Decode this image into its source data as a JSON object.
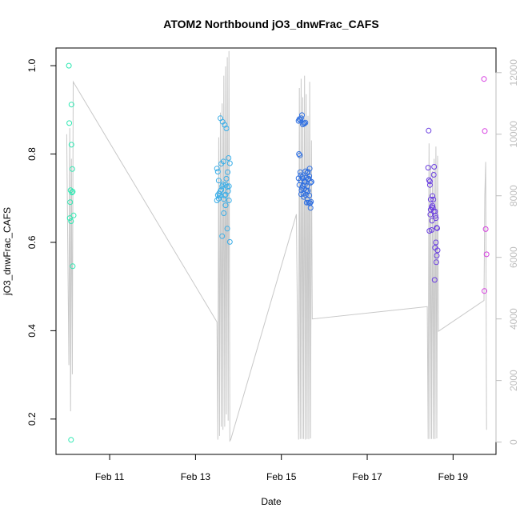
{
  "chart_data": {
    "type": "scatter",
    "title": "ATOM2 Northbound jO3_dnwFrac_CAFS",
    "xlabel": "Date",
    "ylabel": "jO3_dnwFrac_CAFS",
    "x_ticks": [
      "Feb 11",
      "Feb 13",
      "Feb 15",
      "Feb 17",
      "Feb 19"
    ],
    "x_tick_days": [
      11,
      13,
      15,
      17,
      19
    ],
    "xlim_days": [
      9.75,
      20.0
    ],
    "ylim": [
      0.12,
      1.04
    ],
    "y_ticks": [
      0.2,
      0.4,
      0.6,
      0.8,
      1.0
    ],
    "y_tick_labels": [
      "0.2",
      "0.4",
      "0.6",
      "0.8",
      "1.0"
    ],
    "y2lim": [
      -400,
      12800
    ],
    "y2_ticks": [
      0,
      2000,
      4000,
      6000,
      8000,
      10000,
      12000
    ],
    "y2_tick_labels": [
      "0",
      "2000",
      "4000",
      "6000",
      "8000",
      "10000",
      "12000"
    ],
    "colors": {
      "axis": "#000000",
      "secondary_axis": "#bdbdbd",
      "altitude_line": "#c8c8c8"
    },
    "series": [
      {
        "color": "#2ee8b2",
        "x_days": [
          10.05,
          10.06,
          10.07,
          10.08,
          10.09,
          10.1,
          10.1,
          10.11,
          10.11,
          10.12,
          10.13,
          10.14,
          10.14,
          10.16
        ],
        "y": [
          1.0,
          0.87,
          0.655,
          0.691,
          0.718,
          0.648,
          0.153,
          0.912,
          0.821,
          0.713,
          0.766,
          0.546,
          0.715,
          0.661
        ]
      },
      {
        "color": "#3aaee8",
        "x_days": [
          13.5,
          13.52,
          13.54,
          13.56,
          13.58,
          13.6,
          13.62,
          13.64,
          13.66,
          13.68,
          13.7,
          13.72,
          13.74,
          13.76,
          13.78,
          13.5,
          13.55,
          13.6,
          13.65,
          13.7,
          13.75,
          13.52,
          13.58,
          13.63,
          13.68,
          13.72,
          13.77,
          13.8,
          13.54,
          13.62,
          13.7,
          13.8,
          13.66,
          13.74,
          13.78
        ],
        "y": [
          0.767,
          0.76,
          0.74,
          0.706,
          0.716,
          0.719,
          0.727,
          0.731,
          0.698,
          0.706,
          0.708,
          0.744,
          0.726,
          0.716,
          0.727,
          0.695,
          0.711,
          0.778,
          0.783,
          0.73,
          0.759,
          0.707,
          0.881,
          0.873,
          0.866,
          0.858,
          0.791,
          0.779,
          0.699,
          0.614,
          0.684,
          0.601,
          0.666,
          0.631,
          0.695
        ]
      },
      {
        "color": "#2f6fe0",
        "x_days": [
          15.4,
          15.42,
          15.44,
          15.46,
          15.48,
          15.5,
          15.52,
          15.54,
          15.56,
          15.58,
          15.6,
          15.62,
          15.64,
          15.66,
          15.68,
          15.7,
          15.41,
          15.43,
          15.45,
          15.47,
          15.49,
          15.51,
          15.53,
          15.55,
          15.57,
          15.59,
          15.61,
          15.63,
          15.65,
          15.67,
          15.69,
          15.4,
          15.45,
          15.5,
          15.55,
          15.6,
          15.65,
          15.7,
          15.42,
          15.48,
          15.52,
          15.58,
          15.62,
          15.66,
          15.44,
          15.5,
          15.56,
          15.62,
          15.68,
          15.46,
          15.54,
          15.6
        ],
        "y": [
          0.875,
          0.879,
          0.877,
          0.881,
          0.888,
          0.867,
          0.87,
          0.869,
          0.871,
          0.746,
          0.757,
          0.76,
          0.744,
          0.767,
          0.735,
          0.737,
          0.8,
          0.797,
          0.752,
          0.718,
          0.748,
          0.71,
          0.721,
          0.731,
          0.707,
          0.69,
          0.697,
          0.69,
          0.706,
          0.689,
          0.692,
          0.745,
          0.74,
          0.728,
          0.738,
          0.727,
          0.75,
          0.737,
          0.73,
          0.723,
          0.703,
          0.718,
          0.743,
          0.689,
          0.759,
          0.745,
          0.761,
          0.717,
          0.678,
          0.709,
          0.737,
          0.714
        ]
      },
      {
        "color": "#6a3ee0",
        "x_days": [
          18.42,
          18.44,
          18.46,
          18.48,
          18.5,
          18.52,
          18.54,
          18.56,
          18.58,
          18.6,
          18.62,
          18.64,
          18.43,
          18.47,
          18.51,
          18.55,
          18.59,
          18.63,
          18.45,
          18.5,
          18.55,
          18.6,
          18.48,
          18.53,
          18.58,
          18.62,
          18.46,
          18.52,
          18.57,
          18.61
        ],
        "y": [
          0.769,
          0.741,
          0.73,
          0.674,
          0.68,
          0.705,
          0.697,
          0.771,
          0.67,
          0.655,
          0.633,
          0.582,
          0.853,
          0.663,
          0.649,
          0.67,
          0.66,
          0.632,
          0.626,
          0.628,
          0.753,
          0.6,
          0.697,
          0.678,
          0.588,
          0.57,
          0.738,
          0.683,
          0.515,
          0.555
        ]
      },
      {
        "color": "#d63ee0",
        "x_days": [
          19.72,
          19.74,
          19.76,
          19.78,
          19.73
        ],
        "y": [
          0.97,
          0.852,
          0.63,
          0.573,
          0.49
        ]
      }
    ],
    "altitude_line": {
      "x_days": [
        10.0,
        10.05,
        10.07,
        10.09,
        10.11,
        10.13,
        10.15,
        13.5,
        13.52,
        13.54,
        13.56,
        13.58,
        13.6,
        13.62,
        13.64,
        13.66,
        13.68,
        13.7,
        13.72,
        13.74,
        13.76,
        13.78,
        13.8,
        13.82,
        15.35,
        15.4,
        15.42,
        15.44,
        15.46,
        15.48,
        15.5,
        15.52,
        15.54,
        15.56,
        15.58,
        15.6,
        15.62,
        15.64,
        15.66,
        15.68,
        15.7,
        15.72,
        18.4,
        18.42,
        18.44,
        18.46,
        18.48,
        18.5,
        18.52,
        18.54,
        18.56,
        18.58,
        18.6,
        18.62,
        18.64,
        18.66,
        19.72,
        19.74,
        19.76,
        19.78
      ],
      "y": [
        10000,
        2500,
        10200,
        1000,
        9200,
        2200,
        11700,
        3900,
        80,
        9900,
        200,
        10700,
        500,
        11000,
        400,
        11900,
        500,
        12200,
        900,
        12500,
        700,
        12700,
        40,
        80,
        7400,
        80,
        11500,
        100,
        11800,
        100,
        11200,
        100,
        11900,
        80,
        11300,
        100,
        10600,
        90,
        11700,
        120,
        9800,
        4000,
        4400,
        100,
        9700,
        100,
        9000,
        100,
        8800,
        100,
        9200,
        100,
        9600,
        120,
        9300,
        3600,
        4600,
        8000,
        9100,
        400
      ]
    }
  }
}
